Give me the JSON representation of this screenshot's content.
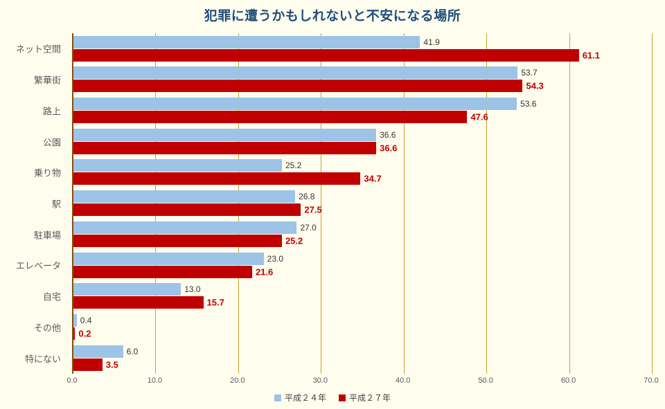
{
  "chart_data": {
    "type": "bar",
    "orientation": "horizontal",
    "title": "犯罪に遭うかもしれないと不安になる場所",
    "categories": [
      "ネット空間",
      "繁華街",
      "路上",
      "公園",
      "乗り物",
      "駅",
      "駐車場",
      "エレベータ",
      "自宅",
      "その他",
      "特にない"
    ],
    "series": [
      {
        "name": "平成２４年",
        "color": "#9DC3E6",
        "values": [
          41.9,
          53.7,
          53.6,
          36.6,
          25.2,
          26.8,
          27.0,
          23.0,
          13.0,
          0.4,
          6.0
        ]
      },
      {
        "name": "平成２７年",
        "color": "#C00000",
        "values": [
          61.1,
          54.3,
          47.6,
          36.6,
          34.7,
          27.5,
          25.2,
          21.6,
          15.7,
          0.2,
          3.5
        ]
      }
    ],
    "xlim": [
      0,
      70
    ],
    "x_tick_step": 10,
    "x_ticks": [
      "0.0",
      "10.0",
      "20.0",
      "30.0",
      "40.0",
      "50.0",
      "60.0",
      "70.0"
    ],
    "grid": true,
    "legend_position": "bottom"
  },
  "colors": {
    "background": "#FFFDEE",
    "title": "#1F4E79",
    "gridline": "#C9A227",
    "axis_line": "#8C4A0A",
    "tick_label": "#595959",
    "category_label": "#595959",
    "series1_label": "#333333",
    "series2_label": "#C00000"
  }
}
